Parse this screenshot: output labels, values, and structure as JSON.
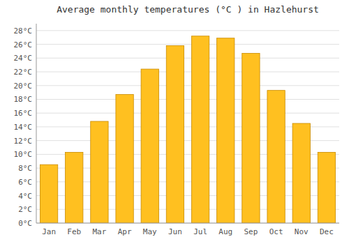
{
  "chart_data": {
    "type": "bar",
    "title": "Average monthly temperatures (°C ) in Hazlehurst",
    "categories": [
      "Jan",
      "Feb",
      "Mar",
      "Apr",
      "May",
      "Jun",
      "Jul",
      "Aug",
      "Sep",
      "Oct",
      "Nov",
      "Dec"
    ],
    "values": [
      8.5,
      10.3,
      14.8,
      18.7,
      22.4,
      25.8,
      27.2,
      26.9,
      24.7,
      19.3,
      14.5,
      10.3
    ],
    "color": "#FFC020",
    "ylim": [
      0,
      29
    ],
    "yticks": [
      {
        "value": 0,
        "label": "0°C"
      },
      {
        "value": 2,
        "label": "2°C"
      },
      {
        "value": 4,
        "label": "4°C"
      },
      {
        "value": 6,
        "label": "6°C"
      },
      {
        "value": 8,
        "label": "8°C"
      },
      {
        "value": 10,
        "label": "10°C"
      },
      {
        "value": 12,
        "label": "12°C"
      },
      {
        "value": 14,
        "label": "14°C"
      },
      {
        "value": 16,
        "label": "16°C"
      },
      {
        "value": 18,
        "label": "18°C"
      },
      {
        "value": 20,
        "label": "20°C"
      },
      {
        "value": 22,
        "label": "22°C"
      },
      {
        "value": 24,
        "label": "24°C"
      },
      {
        "value": 26,
        "label": "26°C"
      },
      {
        "value": 28,
        "label": "28°C"
      }
    ],
    "grid": true
  }
}
